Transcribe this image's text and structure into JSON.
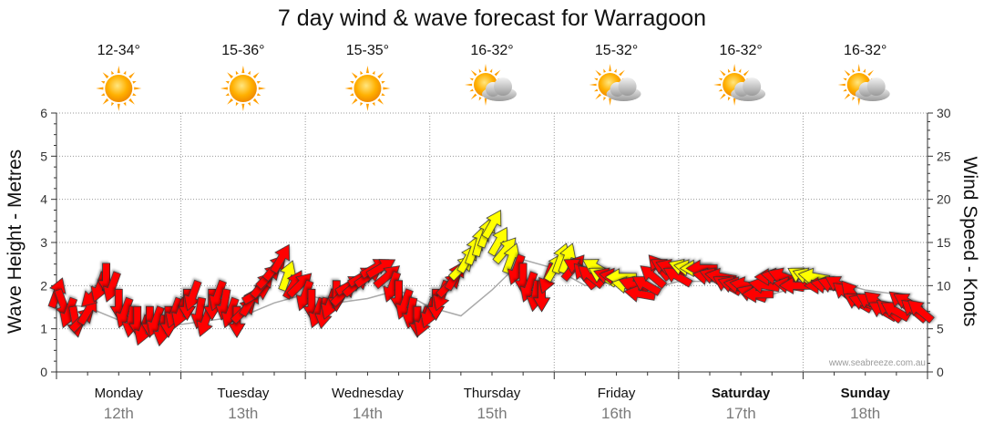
{
  "chart_data": {
    "type": "line",
    "title": "7 day wind & wave forecast for Warragoon",
    "ylabel_left": "Wave Height - Metres",
    "ylabel_right": "Wind Speed - Knots",
    "ylim_left": [
      0,
      6
    ],
    "ylim_right": [
      0,
      30
    ],
    "yticks_left": [
      "0",
      "1",
      "2",
      "3",
      "4",
      "5",
      "6"
    ],
    "yticks_right": [
      "0",
      "5",
      "10",
      "15",
      "20",
      "25",
      "30"
    ],
    "credit": "www.seabreeze.com.au",
    "days": [
      {
        "name": "Monday",
        "date": "12th",
        "temp": "12-34°",
        "weather": "sun-icon",
        "weekend": false
      },
      {
        "name": "Tuesday",
        "date": "13th",
        "temp": "15-36°",
        "weather": "sun-icon",
        "weekend": false
      },
      {
        "name": "Wednesday",
        "date": "14th",
        "temp": "15-35°",
        "weather": "sun-icon",
        "weekend": false
      },
      {
        "name": "Thursday",
        "date": "15th",
        "temp": "16-32°",
        "weather": "partly-cloudy-icon",
        "weekend": false
      },
      {
        "name": "Friday",
        "date": "16th",
        "temp": "15-32°",
        "weather": "partly-cloudy-icon",
        "weekend": false
      },
      {
        "name": "Saturday",
        "date": "17th",
        "temp": "16-32°",
        "weather": "partly-cloudy-icon",
        "weekend": true
      },
      {
        "name": "Sunday",
        "date": "18th",
        "temp": "16-32°",
        "weather": "partly-cloudy-icon",
        "weekend": true
      }
    ],
    "colors": {
      "strong_wind": "#ff0000",
      "moderate_wind": "#ffff00",
      "arrow_edge": "#333333",
      "wave_line": "#aaaaaa"
    },
    "series": [
      {
        "name": "Wind Speed - Knots",
        "axis": "right",
        "x_unit": "days",
        "x": [
          0.0,
          0.05,
          0.1,
          0.15,
          0.2,
          0.25,
          0.3,
          0.35,
          0.4,
          0.45,
          0.5,
          0.55,
          0.6,
          0.65,
          0.7,
          0.75,
          0.8,
          0.85,
          0.9,
          0.95,
          1.0,
          1.05,
          1.1,
          1.15,
          1.2,
          1.25,
          1.3,
          1.35,
          1.4,
          1.45,
          1.5,
          1.55,
          1.6,
          1.65,
          1.7,
          1.75,
          1.8,
          1.85,
          1.9,
          1.95,
          2.0,
          2.05,
          2.1,
          2.15,
          2.2,
          2.25,
          2.3,
          2.35,
          2.4,
          2.45,
          2.5,
          2.55,
          2.6,
          2.65,
          2.7,
          2.75,
          2.8,
          2.85,
          2.9,
          2.95,
          3.0,
          3.05,
          3.1,
          3.15,
          3.2,
          3.25,
          3.3,
          3.35,
          3.4,
          3.45,
          3.5,
          3.55,
          3.6,
          3.65,
          3.7,
          3.75,
          3.8,
          3.85,
          3.9,
          3.95,
          4.0,
          4.05,
          4.1,
          4.15,
          4.2,
          4.25,
          4.3,
          4.35,
          4.4,
          4.45,
          4.5,
          4.55,
          4.6,
          4.65,
          4.7,
          4.75,
          4.8,
          4.85,
          4.9,
          4.95,
          5.0,
          5.05,
          5.1,
          5.15,
          5.2,
          5.25,
          5.3,
          5.35,
          5.4,
          5.45,
          5.5,
          5.55,
          5.6,
          5.65,
          5.7,
          5.75,
          5.8,
          5.85,
          5.9,
          5.95,
          6.0,
          6.05,
          6.1,
          6.15,
          6.2,
          6.25,
          6.3,
          6.35,
          6.4,
          6.45,
          6.5,
          6.55,
          6.6,
          6.65,
          6.7,
          6.75,
          6.8,
          6.85,
          6.9,
          6.95
        ],
        "values": [
          9,
          8,
          7,
          6,
          6,
          7,
          9,
          10,
          11,
          10,
          8,
          7,
          6,
          6,
          5,
          6,
          6,
          5,
          6,
          7,
          7,
          8,
          9,
          7,
          6,
          8,
          9,
          8,
          7,
          6,
          7,
          8,
          9,
          10,
          11,
          12,
          13,
          11,
          10,
          10,
          9,
          8,
          7,
          7,
          8,
          9,
          9,
          10,
          10,
          11,
          11,
          12,
          12,
          11,
          10,
          9,
          8,
          7,
          6,
          6,
          7,
          8,
          9,
          10,
          11,
          12,
          13,
          14,
          15,
          16,
          17,
          15,
          14,
          13,
          12,
          11,
          10,
          9,
          9,
          11,
          12,
          13,
          13,
          12,
          12,
          11,
          11,
          12,
          11,
          11,
          11,
          11,
          10,
          10,
          9,
          10,
          11,
          12,
          12,
          12,
          11,
          12,
          12,
          12,
          12,
          11,
          11,
          11,
          10,
          10,
          10,
          10,
          9,
          9,
          10,
          11,
          11,
          11,
          10,
          10,
          11,
          11,
          11,
          10,
          10,
          10,
          10,
          9,
          9,
          8,
          8,
          8,
          8,
          7,
          7,
          7,
          8,
          8,
          7,
          7
        ],
        "direction_deg": [
          20,
          160,
          200,
          170,
          45,
          30,
          225,
          200,
          180,
          200,
          180,
          200,
          190,
          180,
          200,
          180,
          200,
          190,
          180,
          200,
          200,
          180,
          200,
          190,
          200,
          180,
          200,
          190,
          200,
          180,
          45,
          30,
          60,
          40,
          45,
          40,
          30,
          20,
          30,
          45,
          200,
          180,
          200,
          190,
          200,
          180,
          45,
          60,
          50,
          60,
          55,
          60,
          60,
          50,
          200,
          180,
          200,
          190,
          180,
          200,
          200,
          180,
          200,
          45,
          30,
          45,
          30,
          20,
          15,
          20,
          30,
          30,
          40,
          20,
          200,
          180,
          200,
          190,
          180,
          200,
          30,
          20,
          20,
          40,
          300,
          320,
          310,
          300,
          300,
          290,
          280,
          270,
          280,
          290,
          280,
          300,
          310,
          320,
          300,
          290,
          300,
          290,
          280,
          270,
          270,
          280,
          290,
          280,
          300,
          290,
          280,
          280,
          290,
          270,
          280,
          270,
          280,
          290,
          280,
          270,
          300,
          290,
          280,
          270,
          280,
          290,
          300,
          310,
          320,
          300,
          290,
          300,
          310,
          300,
          310,
          300,
          310,
          300,
          310,
          310
        ],
        "category": [
          "strong",
          "strong",
          "strong",
          "strong",
          "strong",
          "strong",
          "strong",
          "strong",
          "strong",
          "strong",
          "strong",
          "strong",
          "strong",
          "strong",
          "strong",
          "strong",
          "strong",
          "strong",
          "strong",
          "strong",
          "strong",
          "strong",
          "strong",
          "strong",
          "strong",
          "strong",
          "strong",
          "strong",
          "strong",
          "strong",
          "strong",
          "strong",
          "strong",
          "strong",
          "strong",
          "strong",
          "strong",
          "moderate",
          "strong",
          "strong",
          "strong",
          "strong",
          "strong",
          "strong",
          "strong",
          "strong",
          "strong",
          "strong",
          "strong",
          "strong",
          "strong",
          "strong",
          "strong",
          "strong",
          "strong",
          "strong",
          "strong",
          "strong",
          "strong",
          "strong",
          "strong",
          "strong",
          "strong",
          "strong",
          "strong",
          "moderate",
          "moderate",
          "moderate",
          "moderate",
          "moderate",
          "moderate",
          "moderate",
          "moderate",
          "moderate",
          "strong",
          "strong",
          "strong",
          "strong",
          "strong",
          "strong",
          "moderate",
          "moderate",
          "moderate",
          "strong",
          "strong",
          "strong",
          "strong",
          "moderate",
          "moderate",
          "strong",
          "strong",
          "moderate",
          "moderate",
          "strong",
          "strong",
          "strong",
          "strong",
          "strong",
          "strong",
          "strong",
          "strong",
          "moderate",
          "moderate",
          "moderate",
          "strong",
          "strong",
          "strong",
          "strong",
          "strong",
          "strong",
          "strong",
          "strong",
          "strong",
          "strong",
          "strong",
          "strong",
          "strong",
          "strong",
          "strong",
          "strong",
          "moderate",
          "moderate",
          "moderate",
          "strong",
          "strong",
          "strong",
          "strong",
          "strong",
          "strong",
          "strong",
          "strong",
          "strong",
          "strong",
          "strong",
          "strong",
          "strong",
          "strong",
          "strong",
          "strong",
          "strong"
        ]
      },
      {
        "name": "Wave Height - Metres",
        "axis": "left",
        "x_unit": "days",
        "x": [
          0.0,
          0.25,
          0.5,
          0.75,
          1.0,
          1.25,
          1.5,
          1.75,
          2.0,
          2.25,
          2.5,
          2.75,
          3.0,
          3.25,
          3.5,
          3.75,
          4.0,
          4.25,
          4.5,
          4.75,
          5.0,
          5.25,
          5.5,
          5.75,
          6.0,
          6.25,
          6.5,
          6.75,
          6.95
        ],
        "values": [
          1.6,
          1.5,
          1.2,
          1.1,
          1.1,
          1.2,
          1.3,
          1.6,
          1.8,
          1.6,
          1.7,
          1.9,
          1.5,
          1.3,
          1.9,
          2.6,
          2.4,
          2.0,
          2.1,
          1.9,
          2.1,
          2.1,
          1.9,
          1.8,
          2.0,
          2.1,
          1.9,
          1.8,
          1.5
        ]
      }
    ]
  }
}
